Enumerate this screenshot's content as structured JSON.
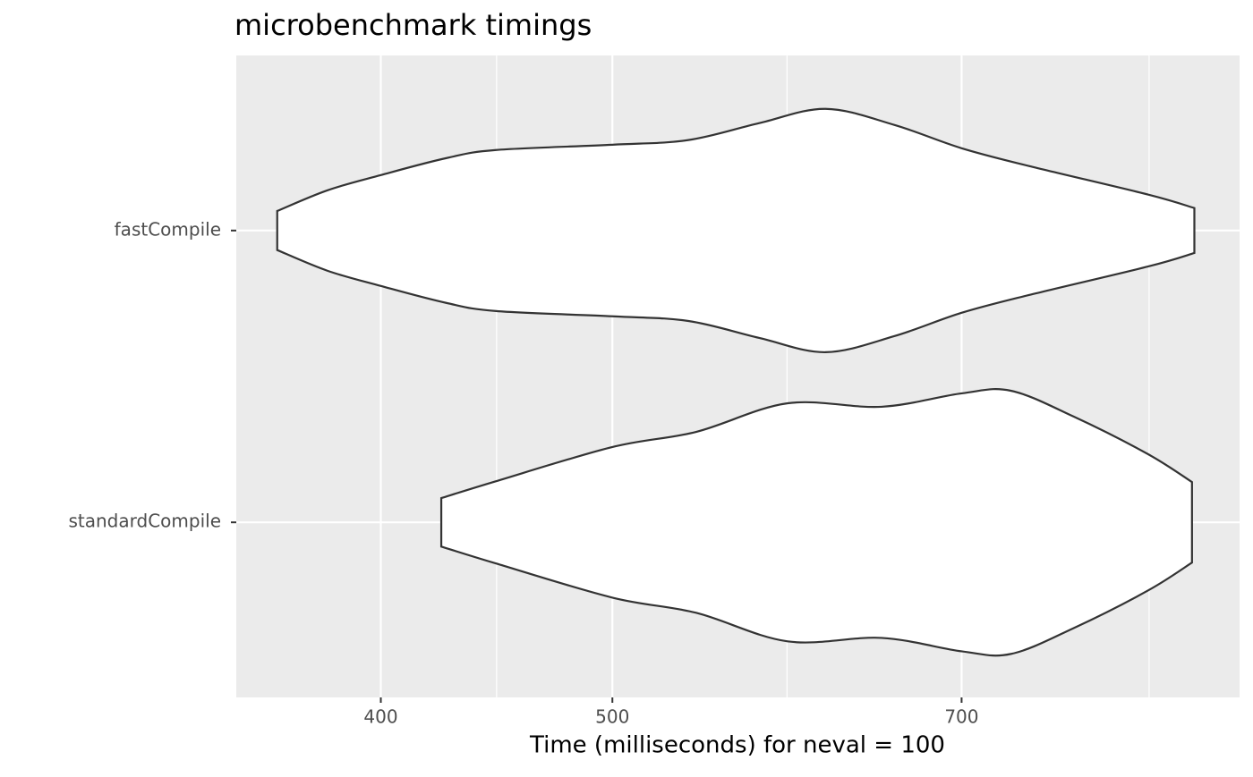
{
  "chart_data": {
    "type": "violin",
    "title": "microbenchmark timings",
    "x_label": "Time (milliseconds) for neval = 100",
    "xscale": "log",
    "xlim": [
      348,
      915
    ],
    "xticks": [
      400,
      500,
      700
    ],
    "grid": true,
    "fill": "#ffffff",
    "color": "#333333",
    "series": [
      {
        "name": "fastCompile",
        "x": [
          362,
          380,
          400,
          426,
          447,
          500,
          538,
          576,
          614,
          656,
          700,
          747,
          838,
          876
        ],
        "half_width": [
          0.067,
          0.138,
          0.19,
          0.248,
          0.276,
          0.294,
          0.31,
          0.368,
          0.417,
          0.362,
          0.282,
          0.221,
          0.123,
          0.077
        ]
      },
      {
        "name": "standardCompile",
        "x": [
          424,
          447,
          500,
          542,
          592,
          648,
          700,
          734,
          780,
          838,
          874
        ],
        "half_width": [
          0.083,
          0.141,
          0.258,
          0.31,
          0.408,
          0.396,
          0.442,
          0.451,
          0.362,
          0.233,
          0.138
        ]
      }
    ]
  }
}
